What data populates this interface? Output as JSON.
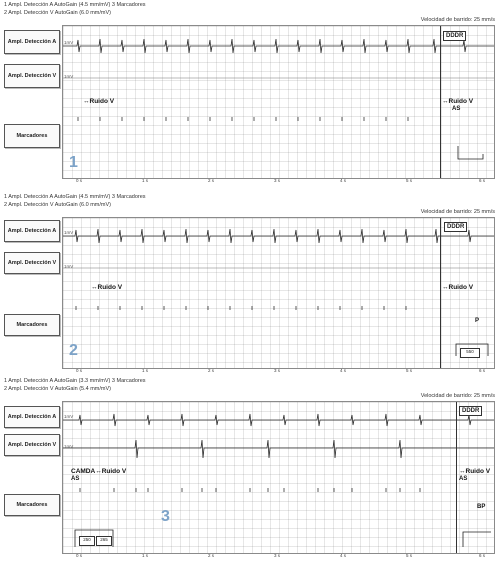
{
  "panels": [
    {
      "header_line1": "1  Ampl. Detección A  AutoGain (4.5 mm/mV)          3  Marcadores",
      "header_line2": "2  Ampl. Detección V  AutoGain (6.0 mm/mV)",
      "speed": "Velocidad de barrido: 25 mm/s",
      "label_a": "Ampl. Detección A",
      "label_v": "Ampl. Detección V",
      "label_m": "Marcadores",
      "mode": "DDDR",
      "noise_left": "↔Ruido V",
      "noise_right": "↔Ruido V",
      "right_ann": "AS",
      "number": "1",
      "box_value": ""
    },
    {
      "header_line1": "1  Ampl. Detección A  AutoGain (4.5 mm/mV)          3  Marcadores",
      "header_line2": "2  Ampl. Detección V  AutoGain (6.0 mm/mV)",
      "speed": "Velocidad de barrido: 25 mm/s",
      "label_a": "Ampl. Detección A",
      "label_v": "Ampl. Detección V",
      "label_m": "Marcadores",
      "mode": "DDDR",
      "noise_left": "↔Ruido V",
      "noise_right": "↔Ruido V",
      "right_ann": "P",
      "number": "2",
      "box_value": "550"
    },
    {
      "header_line1": "1  Ampl. Detección A  AutoGain (3.3 mm/mV)          3  Marcadores",
      "header_line2": "2  Ampl. Detección V  AutoGain (5.4 mm/mV)",
      "speed": "Velocidad de barrido: 25 mm/s",
      "label_a": "Ampl. Detección A",
      "label_v": "Ampl. Detección V",
      "label_m": "Marcadores",
      "mode": "DDDR",
      "noise_left": "CAMDA↔Ruido V",
      "noise_right": "↔Ruido V",
      "right_ann": "AS",
      "left_ann": "AS",
      "right_extra": "BP",
      "number": "3",
      "box_value": "250",
      "box_value2": "265"
    }
  ],
  "time_ticks": [
    "0 s",
    "1 s",
    "2 s",
    "3 s",
    "4 s",
    "5 s",
    "6 s"
  ],
  "colors": {
    "trace": "#2b2b2b",
    "grid": "#cfcfcf",
    "number": "#7da3c8"
  }
}
